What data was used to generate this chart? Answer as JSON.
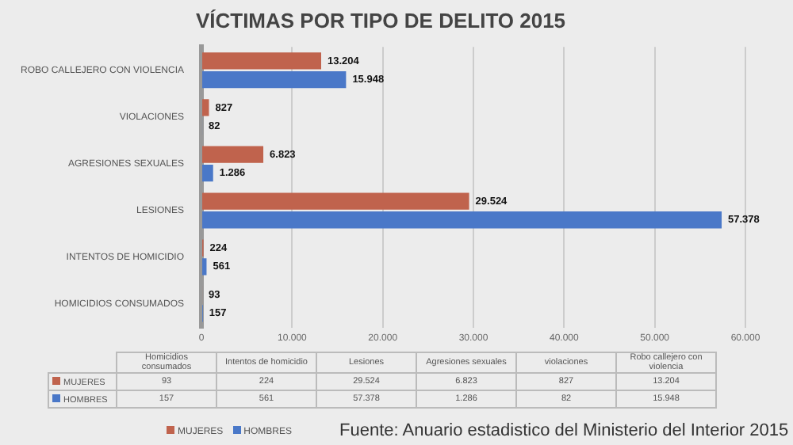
{
  "chart_data": {
    "type": "bar",
    "orientation": "horizontal",
    "title": "VÍCTIMAS POR TIPO DE DELITO 2015",
    "categories": [
      "ROBO CALLEJERO CON VIOLENCIA",
      "VIOLACIONES",
      "AGRESIONES SEXUALES",
      "LESIONES",
      "INTENTOS DE HOMICIDIO",
      "HOMICIDIOS CONSUMADOS"
    ],
    "series": [
      {
        "name": "MUJERES",
        "color": "#c0634d",
        "values": [
          13204,
          827,
          6823,
          29524,
          224,
          93
        ],
        "value_labels": [
          "13.204",
          "827",
          "6.823",
          "29.524",
          "224",
          "93"
        ]
      },
      {
        "name": "HOMBRES",
        "color": "#4a78c8",
        "values": [
          15948,
          82,
          1286,
          57378,
          561,
          157
        ],
        "value_labels": [
          "15.948",
          "82",
          "1.286",
          "57.378",
          "561",
          "157"
        ]
      }
    ],
    "xlim": [
      0,
      60000
    ],
    "xticks": [
      {
        "value": 0,
        "label": "0"
      },
      {
        "value": 10000,
        "label": "10.000"
      },
      {
        "value": 20000,
        "label": "20.000"
      },
      {
        "value": 30000,
        "label": "30.000"
      },
      {
        "value": 40000,
        "label": "40.000"
      },
      {
        "value": 50000,
        "label": "50.000"
      },
      {
        "value": 60000,
        "label": "60.000"
      }
    ],
    "grid": "x",
    "legend": "bottom",
    "annotations": [
      "Fuente: Anuario estadistico del Ministerio del Interior 2015",
      "Homicidios consumados",
      "Intentos de homicidio",
      "Lesiones",
      "Agresiones sexuales",
      "violaciones",
      "Robo callejero con violencia"
    ]
  }
}
